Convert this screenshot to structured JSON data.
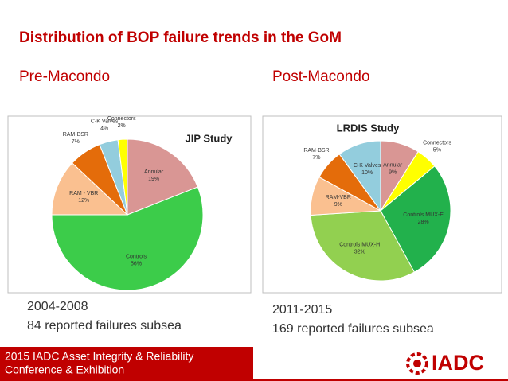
{
  "slide": {
    "title": "Distribution of BOP failure trends in the GoM",
    "sections": [
      {
        "heading": "Pre-Macondo",
        "period": "2004-2008",
        "note": "84 reported failures subsea"
      },
      {
        "heading": "Post-Macondo",
        "period": "2011-2015",
        "note": "169 reported failures subsea"
      }
    ],
    "footer": [
      "2015 IADC Asset Integrity & Reliability",
      "Conference & Exhibition"
    ],
    "logo": "IADC"
  },
  "chart_data": [
    {
      "type": "pie",
      "title": "JIP Study",
      "categories": [
        "Annular",
        "Controls",
        "RAM - VBR",
        "RAM-BSR",
        "C-K Valves",
        "Connectors"
      ],
      "values": [
        19,
        56,
        12,
        7,
        4,
        2
      ],
      "value_labels": [
        "19%",
        "56%",
        "12%",
        "7%",
        "4%",
        "2%"
      ],
      "colors": [
        "#d99694",
        "#3ccc4a",
        "#fac090",
        "#e46c0a",
        "#93cddd",
        "#ffff00"
      ]
    },
    {
      "type": "pie",
      "title": "LRDIS Study",
      "categories": [
        "Annular",
        "Connectors",
        "Controls MUX-E",
        "Controls MUX-H",
        "RAM-VBR",
        "RAM-BSR",
        "C-K Valves"
      ],
      "values": [
        9,
        5,
        28,
        32,
        9,
        7,
        10
      ],
      "value_labels": [
        "9%",
        "5%",
        "28%",
        "32%",
        "9%",
        "7%",
        "10%"
      ],
      "colors": [
        "#d99694",
        "#ffff00",
        "#22b14c",
        "#92d050",
        "#fac090",
        "#e46c0a",
        "#93cddd"
      ]
    }
  ]
}
